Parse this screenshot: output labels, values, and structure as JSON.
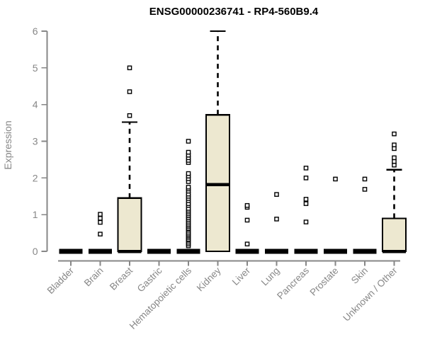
{
  "page": {
    "background": "#ffffff"
  },
  "chart_data": {
    "type": "boxplot",
    "title": "ENSG00000236741 - RP4-560B9.4",
    "ylabel": "Expression",
    "xlabel": "",
    "ylim": [
      0,
      6
    ],
    "yticks": [
      0,
      1,
      2,
      3,
      4,
      5,
      6
    ],
    "grid": false,
    "legend_position": "none",
    "colors": {
      "box_fill": "#EDE8D0",
      "box_border": "#000000",
      "median": "#000000",
      "whisker": "#000000",
      "outlier": "#000000",
      "axis": "#878787",
      "tick_label": "#878787",
      "title": "#000000"
    },
    "categories": [
      "Bladder",
      "Brain",
      "Breast",
      "Gastric",
      "Hematopoietic cells",
      "Kidney",
      "Liver",
      "Lung",
      "Pancreas",
      "Prostate",
      "Skin",
      "Unknown / Other"
    ],
    "boxes": [
      {
        "category": "Bladder",
        "q1": 0,
        "median": 0,
        "q3": 0,
        "whisker_low": 0,
        "whisker_high": 0,
        "outliers": []
      },
      {
        "category": "Brain",
        "q1": 0,
        "median": 0,
        "q3": 0,
        "whisker_low": 0,
        "whisker_high": 0,
        "outliers": [
          0.47,
          0.79,
          0.9,
          1.01
        ]
      },
      {
        "category": "Breast",
        "q1": 0,
        "median": 0,
        "q3": 1.45,
        "whisker_low": 0,
        "whisker_high": 3.52,
        "outliers": [
          3.7,
          4.35,
          5.0
        ]
      },
      {
        "category": "Gastric",
        "q1": 0,
        "median": 0,
        "q3": 0,
        "whisker_low": 0,
        "whisker_high": 0,
        "outliers": []
      },
      {
        "category": "Hematopoietic cells",
        "q1": 0,
        "median": 0,
        "q3": 0,
        "whisker_low": 0,
        "whisker_high": 0,
        "outliers": [
          0.15,
          0.2,
          0.25,
          0.3,
          0.33,
          0.38,
          0.42,
          0.46,
          0.5,
          0.55,
          0.6,
          0.63,
          0.68,
          0.72,
          0.77,
          0.82,
          0.87,
          0.92,
          0.97,
          1.02,
          1.07,
          1.12,
          1.17,
          1.25,
          1.3,
          1.38,
          1.44,
          1.5,
          1.56,
          1.64,
          1.7,
          1.75,
          1.9,
          1.98,
          2.05,
          2.12,
          2.42,
          2.48,
          2.55,
          2.62,
          2.7,
          3.0
        ]
      },
      {
        "category": "Kidney",
        "q1": 0,
        "median": 1.82,
        "q3": 3.72,
        "whisker_low": 0,
        "whisker_high": 6.0,
        "outliers": []
      },
      {
        "category": "Liver",
        "q1": 0,
        "median": 0,
        "q3": 0,
        "whisker_low": 0,
        "whisker_high": 0,
        "outliers": [
          0.2,
          0.85,
          1.2,
          1.25
        ]
      },
      {
        "category": "Lung",
        "q1": 0,
        "median": 0,
        "q3": 0,
        "whisker_low": 0,
        "whisker_high": 0,
        "outliers": [
          0.88,
          1.55
        ]
      },
      {
        "category": "Pancreas",
        "q1": 0,
        "median": 0,
        "q3": 0,
        "whisker_low": 0,
        "whisker_high": 0,
        "outliers": [
          0.8,
          1.3,
          1.42,
          2.0,
          2.27
        ]
      },
      {
        "category": "Prostate",
        "q1": 0,
        "median": 0,
        "q3": 0,
        "whisker_low": 0,
        "whisker_high": 0,
        "outliers": [
          1.97
        ]
      },
      {
        "category": "Skin",
        "q1": 0,
        "median": 0,
        "q3": 0,
        "whisker_low": 0,
        "whisker_high": 0,
        "outliers": [
          1.69,
          1.97
        ]
      },
      {
        "category": "Unknown / Other",
        "q1": 0,
        "median": 0,
        "q3": 0.9,
        "whisker_low": 0,
        "whisker_high": 2.22,
        "outliers": [
          2.35,
          2.45,
          2.55,
          2.8,
          2.9,
          3.2
        ]
      }
    ]
  }
}
